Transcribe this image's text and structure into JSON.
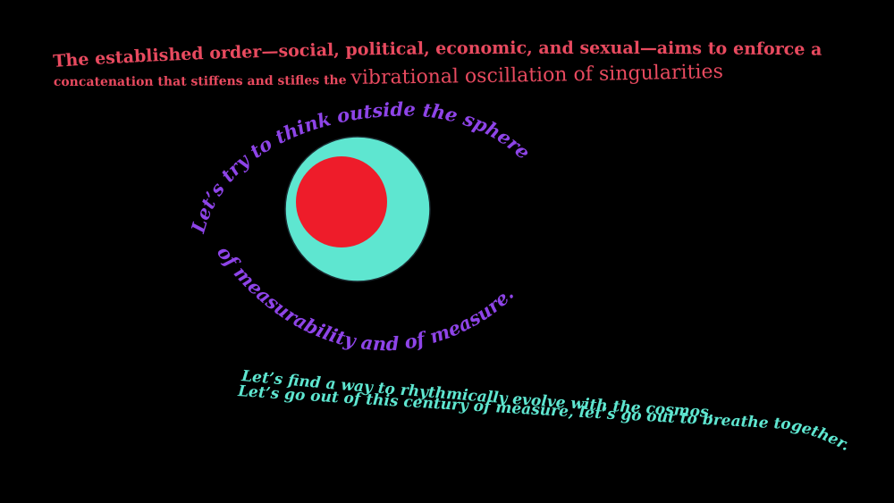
{
  "colors": {
    "background": "#000000",
    "text_top": "#e84a5f",
    "text_eye": "#8e44e8",
    "text_bottom": "#5ee6d0",
    "iris": "#5ee6d0",
    "pupil": "#ee1c2a"
  },
  "top_text": {
    "line1": "The established order—social, political, economic, and sexual—aims to enforce a",
    "line2a": "concatenation that stiffens and stifles the ",
    "line2b": "vibrational oscillation of singularities"
  },
  "eye_text": {
    "upper": "Let’s try to think outside the sphere",
    "lower": "of measurability and of measure."
  },
  "bottom_text": {
    "line1": "Let’s find a way to rhythmically evolve with the cosmos.",
    "line2": "Let’s go out of this century of measure, let’s go out to breathe together."
  }
}
